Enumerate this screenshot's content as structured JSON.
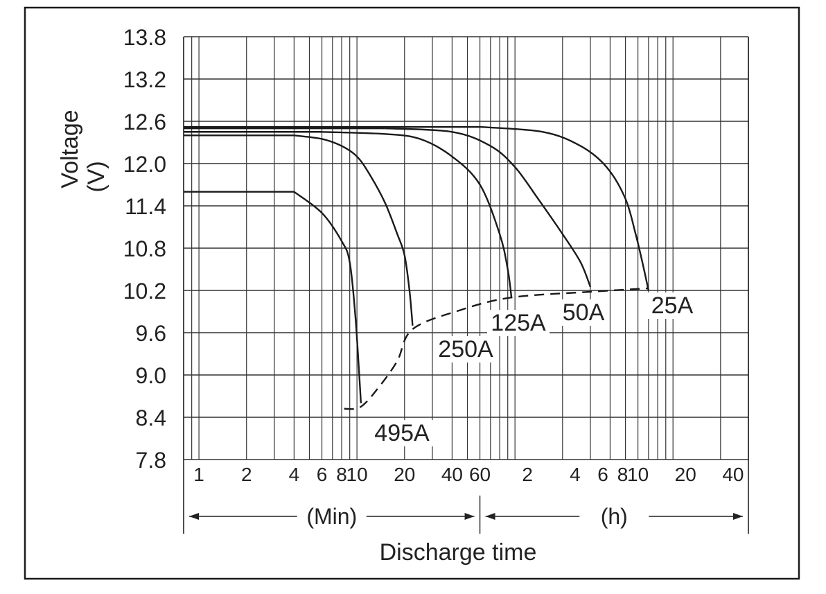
{
  "chart_data": {
    "type": "line",
    "title": "",
    "ylabel": "Voltage",
    "ylabel_unit": "(V)",
    "xlabel": "Discharge time",
    "ylim": [
      7.8,
      13.8
    ],
    "yticks": [
      "13.8",
      "13.2",
      "12.6",
      "12.0",
      "11.4",
      "10.8",
      "10.2",
      "9.6",
      "9.0",
      "8.4",
      "7.8"
    ],
    "x_scale": "log",
    "x_ticks": [
      {
        "label": "1",
        "minutes": 1
      },
      {
        "label": "2",
        "minutes": 2
      },
      {
        "label": "4",
        "minutes": 4
      },
      {
        "label": "6",
        "minutes": 6
      },
      {
        "label": "8",
        "minutes": 8
      },
      {
        "label": "10",
        "minutes": 10
      },
      {
        "label": "20",
        "minutes": 20
      },
      {
        "label": "40",
        "minutes": 40
      },
      {
        "label": "60",
        "minutes": 60
      },
      {
        "label": "2",
        "minutes": 120
      },
      {
        "label": "4",
        "minutes": 240
      },
      {
        "label": "6",
        "minutes": 360
      },
      {
        "label": "8",
        "minutes": 480
      },
      {
        "label": "10",
        "minutes": 600
      },
      {
        "label": "20",
        "minutes": 1200
      },
      {
        "label": "40",
        "minutes": 2400
      }
    ],
    "unit_ranges": [
      {
        "label": "(Min)",
        "from_minutes": 0.8,
        "to_minutes": 60
      },
      {
        "label": "(h)",
        "from_minutes": 60,
        "to_minutes": 3000
      }
    ],
    "grid": true,
    "series": [
      {
        "name": "495A",
        "points": [
          [
            0.8,
            11.6
          ],
          [
            4,
            11.6
          ],
          [
            6,
            11.3
          ],
          [
            8,
            10.9
          ],
          [
            9,
            10.6
          ],
          [
            9.8,
            9.8
          ],
          [
            10.6,
            8.6
          ]
        ]
      },
      {
        "name": "250A",
        "points": [
          [
            0.8,
            12.4
          ],
          [
            4,
            12.4
          ],
          [
            6,
            12.35
          ],
          [
            8,
            12.25
          ],
          [
            10,
            12.1
          ],
          [
            12,
            11.85
          ],
          [
            15,
            11.45
          ],
          [
            18,
            11.0
          ],
          [
            20,
            10.7
          ],
          [
            21.5,
            10.2
          ],
          [
            22.5,
            9.7
          ]
        ]
      },
      {
        "name": "125A",
        "points": [
          [
            0.8,
            12.45
          ],
          [
            6,
            12.45
          ],
          [
            15,
            12.42
          ],
          [
            25,
            12.35
          ],
          [
            40,
            12.1
          ],
          [
            60,
            11.7
          ],
          [
            80,
            11.0
          ],
          [
            90,
            10.5
          ],
          [
            95,
            10.1
          ]
        ]
      },
      {
        "name": "50A",
        "points": [
          [
            0.8,
            12.5
          ],
          [
            15,
            12.5
          ],
          [
            40,
            12.45
          ],
          [
            70,
            12.25
          ],
          [
            100,
            11.95
          ],
          [
            140,
            11.5
          ],
          [
            200,
            11.0
          ],
          [
            260,
            10.6
          ],
          [
            300,
            10.25
          ]
        ]
      },
      {
        "name": "25A",
        "points": [
          [
            0.8,
            12.52
          ],
          [
            60,
            12.52
          ],
          [
            150,
            12.45
          ],
          [
            260,
            12.25
          ],
          [
            380,
            11.95
          ],
          [
            500,
            11.5
          ],
          [
            580,
            11.0
          ],
          [
            640,
            10.6
          ],
          [
            700,
            10.2
          ]
        ]
      }
    ],
    "end_voltage_curve": [
      [
        8.3,
        8.52
      ],
      [
        10.6,
        8.55
      ],
      [
        14,
        8.85
      ],
      [
        18,
        9.2
      ],
      [
        22.5,
        9.65
      ],
      [
        45,
        9.92
      ],
      [
        95,
        10.1
      ],
      [
        300,
        10.18
      ],
      [
        700,
        10.23
      ]
    ]
  }
}
